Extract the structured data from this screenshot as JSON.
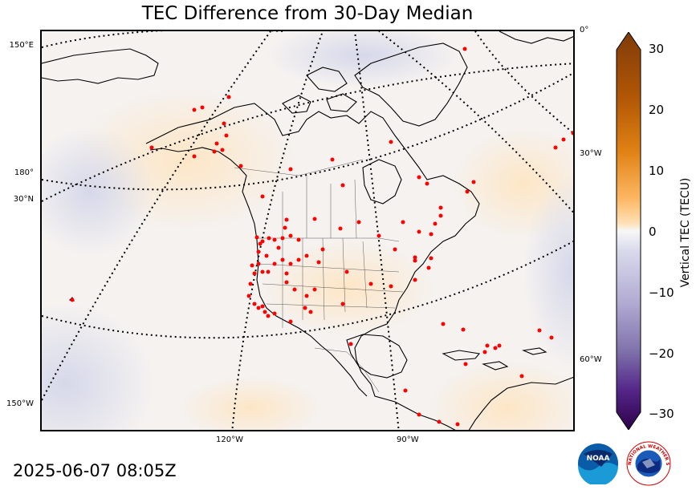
{
  "title": "TEC Difference from 30-Day Median",
  "timestamp": "2025-06-07 08:05Z",
  "colorbar": {
    "label": "Vertical TEC (TECU)",
    "ticks": [
      "30",
      "20",
      "10",
      "0",
      "−10",
      "−20",
      "−30"
    ],
    "min": -30,
    "max": 30,
    "colors": {
      "positive_max": "#7f3b08",
      "positive_mid": "#e08214",
      "positive_low": "#fee0b6",
      "neutral": "#f7f7f7",
      "negative_low": "#d8daeb",
      "negative_mid": "#8073ac",
      "negative_max": "#2d004b"
    }
  },
  "graticule_labels": {
    "left": [
      "150°E",
      "180°",
      "30°N",
      "150°W"
    ],
    "right": [
      "0°",
      "30°W",
      "60°W"
    ],
    "bottom": [
      "120°W",
      "90°W"
    ]
  },
  "logos": {
    "noaa": "NOAA",
    "nws": "NATIONAL WEATHER SERVICE"
  },
  "station_marker_color": "#ff0000"
}
